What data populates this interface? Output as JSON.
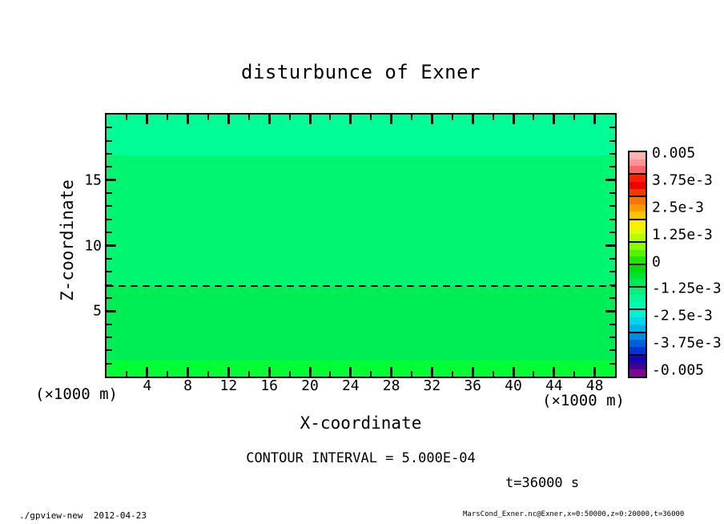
{
  "title": "disturbunce of Exner",
  "axes": {
    "x": {
      "label": "X-coordinate",
      "unit": "(×1000 m)",
      "range": [
        0,
        50
      ],
      "major_ticks": [
        4,
        8,
        12,
        16,
        20,
        24,
        28,
        32,
        36,
        40,
        44,
        48
      ],
      "minor_ticks": [
        2,
        6,
        10,
        14,
        18,
        22,
        26,
        30,
        34,
        38,
        42,
        46
      ],
      "tick_labels": [
        "4",
        "8",
        "12",
        "16",
        "20",
        "24",
        "28",
        "32",
        "36",
        "40",
        "44",
        "48"
      ]
    },
    "z": {
      "label": "Z-coordinate",
      "unit": "(×1000 m)",
      "range": [
        0,
        20
      ],
      "major_ticks": [
        5,
        10,
        15
      ],
      "minor_ticks": [
        1,
        2,
        3,
        4,
        6,
        7,
        8,
        9,
        11,
        12,
        13,
        14,
        16,
        17,
        18,
        19
      ],
      "tick_labels": [
        "5",
        "10",
        "15"
      ]
    }
  },
  "annotations": {
    "contour_interval": "CONTOUR INTERVAL = 5.000E-04",
    "time": "t=36000 s"
  },
  "footer": {
    "left": "./gpview-new  2012-04-23",
    "right": "MarsCond_Exner.nc@Exner,x=0:50000,z=0:20000,t=36000"
  },
  "colorbar": {
    "labels": [
      "0.005",
      "3.75e-3",
      "2.5e-3",
      "1.25e-3",
      "0",
      "-1.25e-3",
      "-2.5e-3",
      "-3.75e-3",
      "-0.005"
    ],
    "range": [
      -0.005,
      0.005
    ],
    "segments": [
      {
        "colors": [
          "#ffb4b4",
          "#ff9292",
          "#ff6464"
        ]
      },
      {
        "colors": [
          "#ff2000",
          "#f20000",
          "#f83800"
        ]
      },
      {
        "colors": [
          "#ff7400",
          "#ff9a00",
          "#ffc400"
        ]
      },
      {
        "colors": [
          "#ffec00",
          "#e4fa00",
          "#b4ff00"
        ]
      },
      {
        "colors": [
          "#8afe00",
          "#52f400",
          "#1ee800"
        ]
      },
      {
        "colors": [
          "#00dc06",
          "#00e232",
          "#00ea55"
        ]
      },
      {
        "colors": [
          "#00f278",
          "#00fa9a",
          "#00fcba"
        ]
      },
      {
        "colors": [
          "#00f2d8",
          "#00d8ea",
          "#00b2ea"
        ]
      },
      {
        "colors": [
          "#008ce4",
          "#0060da",
          "#0034d4"
        ]
      },
      {
        "colors": [
          "#1408b6",
          "#3c0496",
          "#7c0894"
        ]
      }
    ]
  },
  "chart_data": {
    "type": "heatmap",
    "title": "disturbunce of Exner",
    "xlabel": "X-coordinate (×1000 m)",
    "ylabel": "Z-coordinate (×1000 m)",
    "xlim": [
      0,
      50
    ],
    "ylim": [
      0,
      20
    ],
    "contour_interval": "5.000E-04",
    "time": "t=36000 s",
    "colorbar_ticks": [
      0.005,
      0.00375,
      0.0025,
      0.00125,
      0,
      -0.00125,
      -0.0025,
      -0.00375,
      -0.005
    ],
    "bands": [
      {
        "z_from": 16.9,
        "z_to": 20.0,
        "color": "#00fc96",
        "approx_value": -0.00075
      },
      {
        "z_from": 6.9,
        "z_to": 16.9,
        "color": "#00f670",
        "approx_value": -0.0005
      },
      {
        "z_from": 1.2,
        "z_to": 6.9,
        "color": "#00ee55",
        "approx_value": -0.00025
      },
      {
        "z_from": 0.0,
        "z_to": 1.2,
        "color": "#00ff33",
        "approx_value": 0.00025
      }
    ],
    "dashed_contour_z": 6.9
  }
}
